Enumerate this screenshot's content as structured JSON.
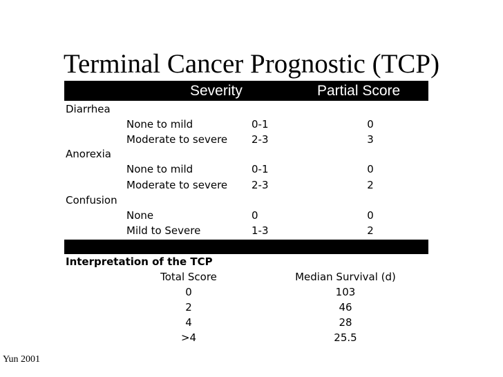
{
  "slide": {
    "title": "Terminal Cancer Prognostic (TCP)",
    "source": "Yun 2001"
  },
  "table": {
    "headers": {
      "severity": "Severity",
      "partial_score": "Partial Score"
    },
    "groups": [
      {
        "label": "Diarrhea",
        "rows": [
          {
            "level": "None to mild",
            "severity": "0-1",
            "score": "0"
          },
          {
            "level": "Moderate to severe",
            "severity": "2-3",
            "score": "3"
          }
        ]
      },
      {
        "label": "Anorexia",
        "rows": [
          {
            "level": "None to mild",
            "severity": "0-1",
            "score": "0"
          },
          {
            "level": "Moderate to severe",
            "severity": "2-3",
            "score": "2"
          }
        ]
      },
      {
        "label": "Confusion",
        "rows": [
          {
            "level": "None",
            "severity": "0",
            "score": "0"
          },
          {
            "level": "Mild to Severe",
            "severity": "1-3",
            "score": "2"
          }
        ]
      }
    ]
  },
  "interpretation": {
    "title": "Interpretation of the TCP",
    "headers": {
      "total_score": "Total Score",
      "median_survival": "Median Survival (d)"
    },
    "rows": [
      {
        "total": "0",
        "survival": "103"
      },
      {
        "total": "2",
        "survival": "46"
      },
      {
        "total": "4",
        "survival": "28"
      },
      {
        "total": ">4",
        "survival": "25.5"
      }
    ]
  }
}
